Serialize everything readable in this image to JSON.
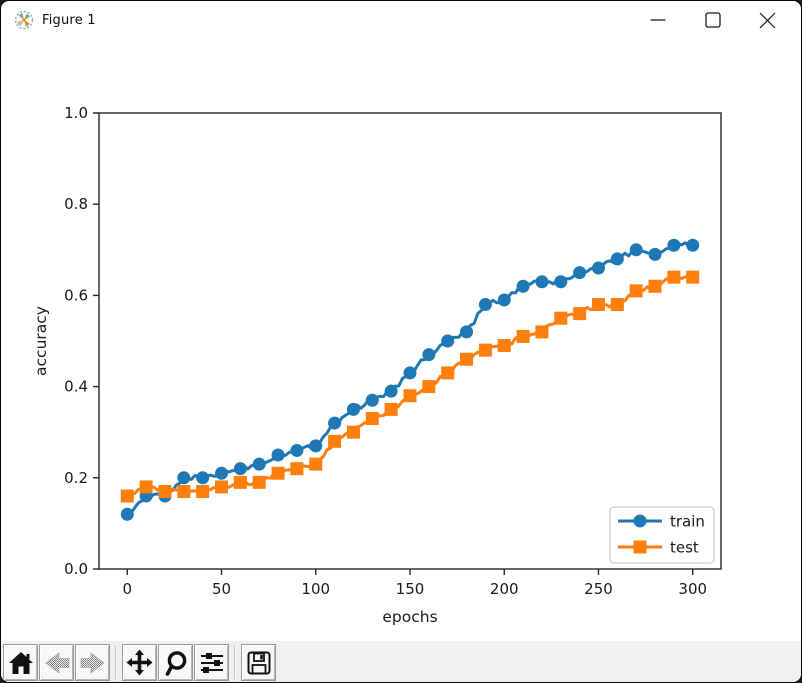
{
  "window": {
    "title": "Figure 1",
    "icon": "matplotlib-logo",
    "controls": [
      {
        "name": "minimize",
        "glyph": "minimize-icon"
      },
      {
        "name": "maximize",
        "glyph": "maximize-icon"
      },
      {
        "name": "close",
        "glyph": "close-icon"
      }
    ]
  },
  "chart_data": {
    "type": "line",
    "title": "",
    "xlabel": "epochs",
    "ylabel": "accuracy",
    "xlim": [
      -15,
      315
    ],
    "ylim": [
      0.0,
      1.0
    ],
    "x_ticks": [
      0,
      50,
      100,
      150,
      200,
      250,
      300
    ],
    "y_ticks": [
      0.0,
      0.2,
      0.4,
      0.6,
      0.8,
      1.0
    ],
    "grid": false,
    "legend_position": "lower right",
    "x": [
      0,
      10,
      20,
      30,
      40,
      50,
      60,
      70,
      80,
      90,
      100,
      110,
      120,
      130,
      140,
      150,
      160,
      170,
      180,
      190,
      200,
      210,
      220,
      230,
      240,
      250,
      260,
      270,
      280,
      290,
      300
    ],
    "series": [
      {
        "name": "train",
        "color": "#1f77b4",
        "marker": "circle",
        "values": [
          0.12,
          0.16,
          0.16,
          0.2,
          0.2,
          0.21,
          0.22,
          0.23,
          0.25,
          0.26,
          0.27,
          0.32,
          0.35,
          0.37,
          0.39,
          0.43,
          0.47,
          0.5,
          0.52,
          0.58,
          0.59,
          0.62,
          0.63,
          0.63,
          0.65,
          0.66,
          0.68,
          0.7,
          0.69,
          0.71,
          0.71
        ]
      },
      {
        "name": "test",
        "color": "#ff7f0e",
        "marker": "square",
        "values": [
          0.16,
          0.18,
          0.17,
          0.17,
          0.17,
          0.18,
          0.19,
          0.19,
          0.21,
          0.22,
          0.23,
          0.28,
          0.3,
          0.33,
          0.35,
          0.38,
          0.4,
          0.43,
          0.46,
          0.48,
          0.49,
          0.51,
          0.52,
          0.55,
          0.56,
          0.58,
          0.58,
          0.61,
          0.62,
          0.64,
          0.64
        ]
      }
    ]
  },
  "toolbar": {
    "buttons": [
      {
        "name": "home",
        "icon": "home-icon",
        "enabled": true
      },
      {
        "name": "back",
        "icon": "back-arrow-icon",
        "enabled": false
      },
      {
        "name": "forward",
        "icon": "forward-arrow-icon",
        "enabled": false
      },
      {
        "name": "pan",
        "icon": "pan-arrows-icon",
        "enabled": true
      },
      {
        "name": "zoom-to-rect",
        "icon": "magnifier-icon",
        "enabled": true
      },
      {
        "name": "configure-subplots",
        "icon": "sliders-icon",
        "enabled": true
      },
      {
        "name": "save",
        "icon": "floppy-disk-icon",
        "enabled": true
      }
    ]
  },
  "colors": {
    "train": "#1f77b4",
    "test": "#ff7f0e",
    "toolbar_bg": "#f0f0f0",
    "canvas_bg": "#ffffff",
    "text": "#1a1a1a"
  }
}
